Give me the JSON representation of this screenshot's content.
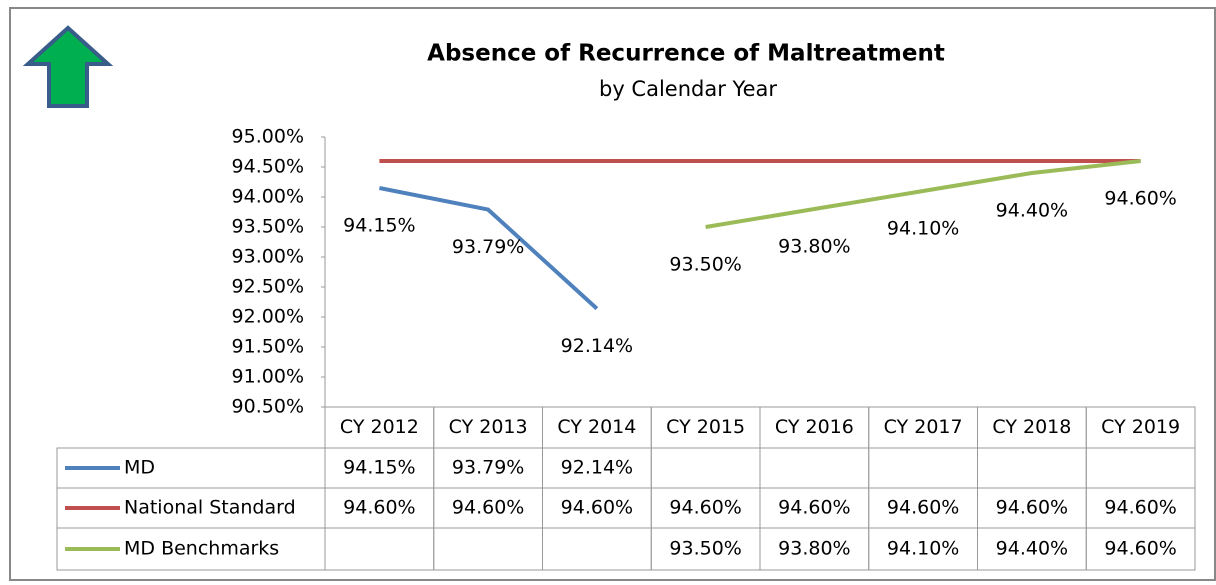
{
  "chart_data": {
    "type": "line",
    "title": "Absence of Recurrence of Maltreatment",
    "subtitle": "by Calendar Year",
    "categories": [
      "CY 2012",
      "CY 2013",
      "CY 2014",
      "CY 2015",
      "CY 2016",
      "CY 2017",
      "CY 2018",
      "CY 2019"
    ],
    "series": [
      {
        "name": "MD",
        "color": "#4f81bd",
        "data_labels": true,
        "values": [
          94.15,
          93.79,
          92.14,
          null,
          null,
          null,
          null,
          null
        ],
        "value_labels": [
          "94.15%",
          "93.79%",
          "92.14%",
          null,
          null,
          null,
          null,
          null
        ]
      },
      {
        "name": "National Standard",
        "color": "#c0504d",
        "data_labels": false,
        "values": [
          94.6,
          94.6,
          94.6,
          94.6,
          94.6,
          94.6,
          94.6,
          94.6
        ],
        "value_labels": [
          "94.60%",
          "94.60%",
          "94.60%",
          "94.60%",
          "94.60%",
          "94.60%",
          "94.60%",
          "94.60%"
        ]
      },
      {
        "name": "MD Benchmarks",
        "color": "#9bbb59",
        "data_labels": true,
        "values": [
          null,
          null,
          null,
          93.5,
          93.8,
          94.1,
          94.4,
          94.6
        ],
        "value_labels": [
          null,
          null,
          null,
          "93.50%",
          "93.80%",
          "94.10%",
          "94.40%",
          "94.60%"
        ]
      }
    ],
    "ylim": [
      90.5,
      95
    ],
    "yticks": [
      {
        "value": 90.5,
        "label": "90.50%"
      },
      {
        "value": 91,
        "label": "91.00%"
      },
      {
        "value": 91.5,
        "label": "91.50%"
      },
      {
        "value": 92,
        "label": "92.00%"
      },
      {
        "value": 92.5,
        "label": "92.50%"
      },
      {
        "value": 93,
        "label": "93.00%"
      },
      {
        "value": 93.5,
        "label": "93.50%"
      },
      {
        "value": 94,
        "label": "94.00%"
      },
      {
        "value": 94.5,
        "label": "94.50%"
      },
      {
        "value": 95,
        "label": "95.00%"
      }
    ],
    "grid": false,
    "data_table": true
  }
}
